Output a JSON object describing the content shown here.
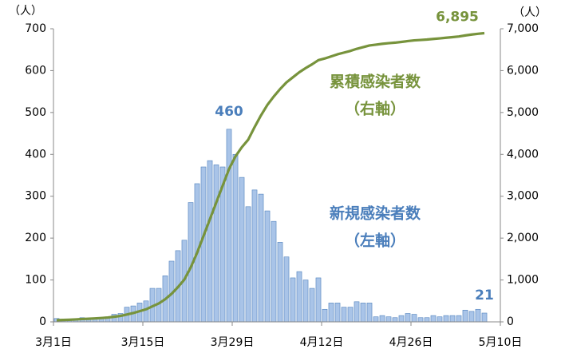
{
  "chart_data": {
    "type": "bar_line",
    "y_unit": "（人）",
    "y2_unit": "（人）",
    "x": [
      0,
      1,
      2,
      3,
      4,
      5,
      6,
      7,
      8,
      9,
      10,
      11,
      12,
      13,
      14,
      15,
      16,
      17,
      18,
      19,
      20,
      21,
      22,
      23,
      24,
      25,
      26,
      27,
      28,
      29,
      30,
      31,
      32,
      33,
      34,
      35,
      36,
      37,
      38,
      39,
      40,
      41,
      42,
      43,
      44,
      45,
      46,
      47,
      48,
      49,
      50,
      51,
      52,
      53,
      54,
      55,
      56,
      57,
      58,
      59,
      60,
      61,
      62,
      63,
      64,
      65,
      66,
      67
    ],
    "xlim": [
      0,
      70
    ],
    "xticks": [
      {
        "value": 0,
        "label": "3月1日"
      },
      {
        "value": 14,
        "label": "3月15日"
      },
      {
        "value": 28,
        "label": "3月29日"
      },
      {
        "value": 42,
        "label": "4月12日"
      },
      {
        "value": 56,
        "label": "4月26日"
      },
      {
        "value": 70,
        "label": "5月10日"
      }
    ],
    "ylim": [
      0,
      700
    ],
    "yticks": [
      0,
      100,
      200,
      300,
      400,
      500,
      600,
      700
    ],
    "y2lim": [
      0,
      7000
    ],
    "y2ticks": [
      0,
      {
        "value": 1000,
        "label": "1,000"
      },
      {
        "value": 2000,
        "label": "2,000"
      },
      {
        "value": 3000,
        "label": "3,000"
      },
      {
        "value": 4000,
        "label": "4,000"
      },
      {
        "value": 5000,
        "label": "5,000"
      },
      {
        "value": 6000,
        "label": "6,000"
      },
      {
        "value": 7000,
        "label": "7,000"
      }
    ],
    "series": [
      {
        "name": "新規感染者数",
        "note": "（左軸）",
        "type": "bar",
        "color": "#a9c4e8",
        "edge": "#4f81bd",
        "text_color": "#4a7ebb",
        "values": [
          8,
          4,
          5,
          8,
          10,
          6,
          8,
          10,
          12,
          18,
          20,
          35,
          38,
          45,
          50,
          80,
          80,
          110,
          145,
          170,
          195,
          285,
          330,
          370,
          385,
          375,
          370,
          460,
          400,
          345,
          275,
          315,
          305,
          265,
          240,
          190,
          155,
          105,
          120,
          100,
          80,
          105,
          30,
          45,
          45,
          35,
          35,
          48,
          45,
          45,
          12,
          15,
          12,
          10,
          15,
          20,
          18,
          10,
          10,
          15,
          12,
          15,
          15,
          15,
          28,
          25,
          30,
          21
        ],
        "labeled": [
          27,
          67
        ]
      },
      {
        "name": "累積感染者数",
        "note": "（右軸）",
        "type": "line",
        "axis": "y2",
        "color": "#77933c",
        "text_color": "#77933c",
        "values": [
          40,
          45,
          50,
          58,
          68,
          74,
          82,
          92,
          104,
          122,
          142,
          175,
          210,
          255,
          300,
          370,
          440,
          540,
          670,
          830,
          1010,
          1300,
          1650,
          2050,
          2450,
          2850,
          3250,
          3650,
          3950,
          4170,
          4350,
          4650,
          4930,
          5180,
          5380,
          5560,
          5720,
          5840,
          5960,
          6060,
          6150,
          6250,
          6290,
          6340,
          6390,
          6430,
          6470,
          6520,
          6560,
          6600,
          6620,
          6640,
          6655,
          6668,
          6685,
          6705,
          6722,
          6732,
          6742,
          6757,
          6770,
          6785,
          6800,
          6815,
          6840,
          6862,
          6880,
          6895
        ],
        "value_labels": [
          null,
          null,
          null,
          null,
          null,
          null,
          null,
          null,
          null,
          null,
          null,
          null,
          null,
          null,
          null,
          null,
          null,
          null,
          null,
          null,
          null,
          null,
          null,
          null,
          null,
          null,
          null,
          null,
          null,
          null,
          null,
          null,
          null,
          null,
          null,
          null,
          null,
          null,
          null,
          null,
          null,
          null,
          null,
          null,
          null,
          null,
          null,
          null,
          null,
          null,
          null,
          null,
          null,
          null,
          null,
          null,
          null,
          null,
          null,
          null,
          null,
          null,
          null,
          null,
          null,
          null,
          null,
          "6,895"
        ]
      }
    ]
  }
}
